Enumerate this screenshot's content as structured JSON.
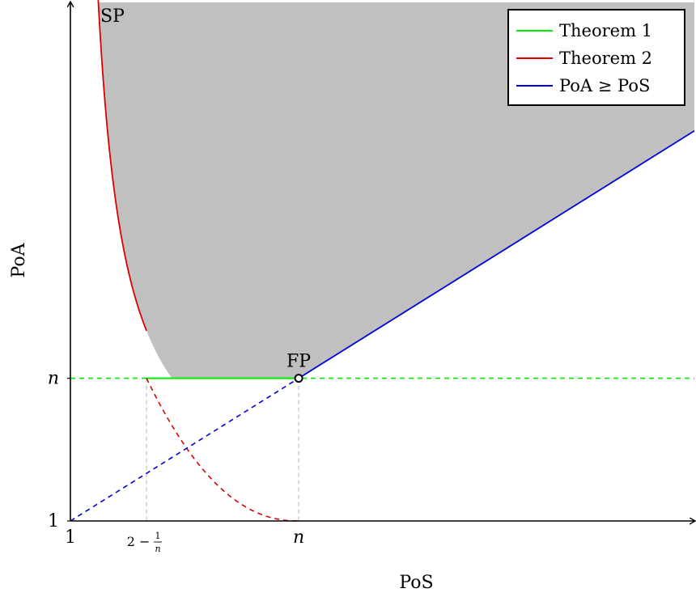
{
  "chart_data": {
    "type": "line",
    "xlabel": "PoS",
    "ylabel": "PoA",
    "x_ticks": [
      {
        "value": 1,
        "label": "1"
      },
      {
        "value": 1.5,
        "label_main": "2 − ",
        "label_frac_num": "1",
        "label_frac_den": "n"
      },
      {
        "value": 2.5,
        "label": "n"
      }
    ],
    "y_ticks": [
      {
        "value": 1,
        "label": "1"
      },
      {
        "value": 2.5,
        "label": "n"
      }
    ],
    "xlim": [
      1,
      5.1
    ],
    "ylim": [
      1,
      6.45
    ],
    "n": 2.5,
    "region_label": "SP",
    "point_label": "FP",
    "legend": {
      "position": "top-right",
      "entries": [
        {
          "label": "Theorem 1",
          "color": "#00ee00"
        },
        {
          "label": "Theorem 2",
          "color": "#dd0000"
        },
        {
          "label_parts": [
            "PoA ",
            "≥",
            " PoS"
          ],
          "color": "#0000dd"
        }
      ]
    },
    "series": [
      {
        "name": "Theorem 1",
        "color": "#00ee00",
        "segments": [
          {
            "style": "solid",
            "from": [
              1.5,
              2.5
            ],
            "to": [
              2.5,
              2.5
            ]
          },
          {
            "style": "dashed",
            "from": [
              1,
              2.5
            ],
            "to": [
              5.1,
              2.5
            ]
          }
        ]
      },
      {
        "name": "Theorem 2",
        "color": "#dd0000",
        "curve": "y = x/(x-1) (i.e. 1/PoA + 1/PoS = 1)",
        "segments": [
          {
            "style": "solid",
            "x_range": [
              1.075,
              1.5
            ]
          },
          {
            "style": "dashed",
            "x_range": [
              1.5,
              2.5
            ]
          }
        ]
      },
      {
        "name": "PoA ≥ PoS",
        "color": "#0000dd",
        "curve": "y = x",
        "segments": [
          {
            "style": "dashed",
            "x_range": [
              1,
              2.5
            ]
          },
          {
            "style": "solid",
            "x_range": [
              2.5,
              5.1
            ]
          }
        ]
      }
    ],
    "shaded_region": {
      "color": "#c0c0c0",
      "description": "above max(x/(x-1), n, x)"
    }
  }
}
